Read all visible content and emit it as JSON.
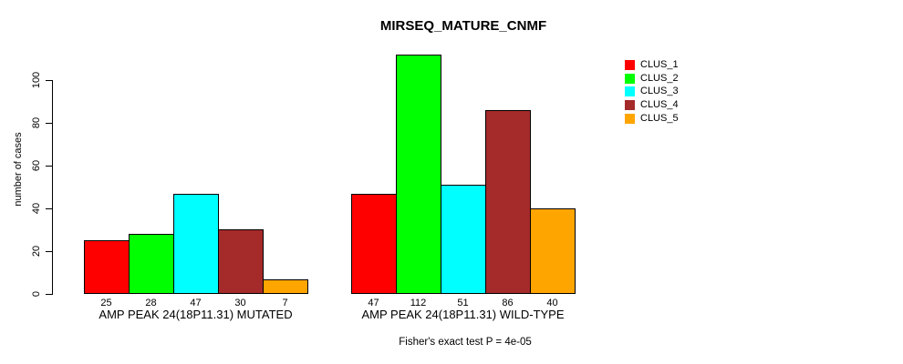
{
  "chart_data": {
    "type": "bar",
    "title": "MIRSEQ_MATURE_CNMF",
    "ylabel": "number of cases",
    "xlabel": "",
    "ylim": [
      0,
      112
    ],
    "yticks": [
      0,
      20,
      40,
      60,
      80,
      100
    ],
    "grid": false,
    "legend_position": "top-right",
    "categories": [
      "CLUS_1",
      "CLUS_2",
      "CLUS_3",
      "CLUS_4",
      "CLUS_5"
    ],
    "series_colors": [
      "#FF0000",
      "#00FF00",
      "#00FFFF",
      "#A52A2A",
      "#FFA500"
    ],
    "groups": [
      {
        "label": "AMP PEAK 24(18P11.31) MUTATED",
        "values": [
          25,
          28,
          47,
          30,
          7
        ]
      },
      {
        "label": "AMP PEAK 24(18P11.31) WILD-TYPE",
        "values": [
          47,
          112,
          51,
          86,
          40
        ]
      }
    ],
    "bar_value_labels_shown": true,
    "annotation": "Fisher's exact test P = 4e-05"
  }
}
